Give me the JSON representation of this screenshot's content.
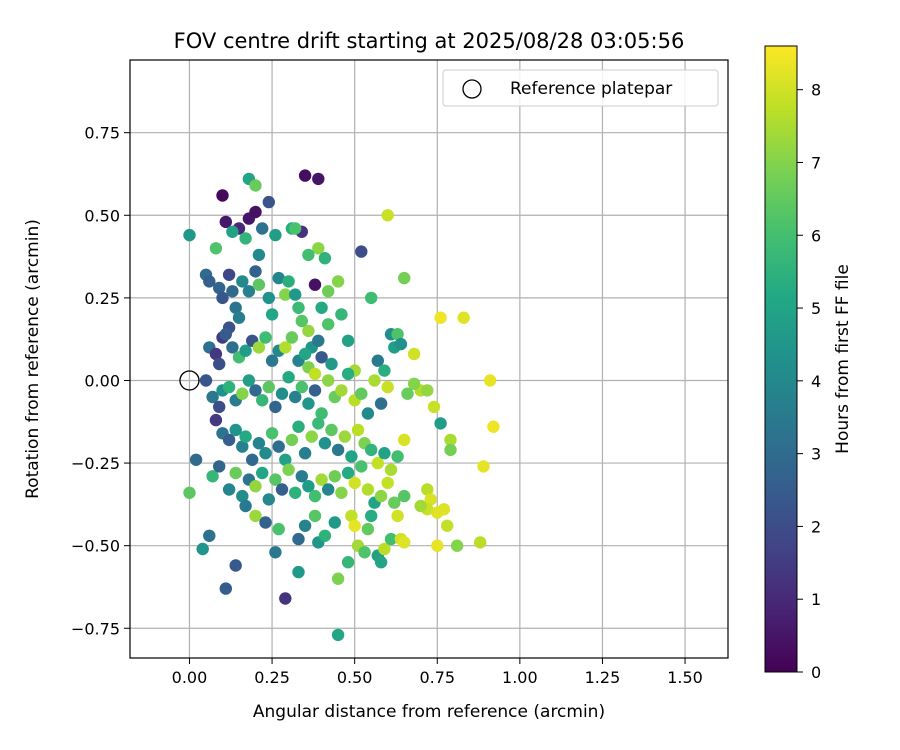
{
  "chart_data": {
    "type": "scatter",
    "title": "FOV centre drift starting at 2025/08/28 03:05:56",
    "xlabel": "Angular distance from reference (arcmin)",
    "ylabel": "Rotation from reference (arcmin)",
    "xlim": [
      -0.18,
      1.63
    ],
    "ylim": [
      -0.84,
      0.97
    ],
    "xticks": [
      0.0,
      0.25,
      0.5,
      0.75,
      1.0,
      1.25,
      1.5
    ],
    "xtick_labels": [
      "0.00",
      "0.25",
      "0.50",
      "0.75",
      "1.00",
      "1.25",
      "1.50"
    ],
    "yticks": [
      -0.75,
      -0.5,
      -0.25,
      0.0,
      0.25,
      0.5,
      0.75
    ],
    "ytick_labels": [
      "−0.75",
      "−0.50",
      "−0.25",
      "0.00",
      "0.25",
      "0.50",
      "0.75"
    ],
    "grid": true,
    "legend": {
      "placement": "top-right",
      "entries": [
        {
          "label": "Reference platepar",
          "marker": "open-circle"
        }
      ]
    },
    "reference_point": {
      "x": 0.0,
      "y": 0.0
    },
    "colorbar": {
      "label": "Hours from first FF file",
      "min": 0,
      "max": 8.6,
      "ticks": [
        0,
        1,
        2,
        3,
        4,
        5,
        6,
        7,
        8
      ],
      "tick_labels": [
        "0",
        "1",
        "2",
        "3",
        "4",
        "5",
        "6",
        "7",
        "8"
      ],
      "colormap": "viridis"
    },
    "points": [
      [
        0.1,
        0.56,
        0.2
      ],
      [
        0.11,
        0.48,
        0.6
      ],
      [
        0.15,
        0.46,
        1.0
      ],
      [
        0.18,
        0.49,
        0.5
      ],
      [
        0.2,
        0.51,
        0.4
      ],
      [
        0.24,
        0.54,
        2.2
      ],
      [
        0.35,
        0.62,
        0.3
      ],
      [
        0.39,
        0.61,
        0.5
      ],
      [
        0.34,
        0.45,
        1.2
      ],
      [
        0.38,
        0.29,
        0.4
      ],
      [
        0.52,
        0.39,
        2.0
      ],
      [
        0.18,
        0.61,
        5.0
      ],
      [
        0.2,
        0.59,
        6.6
      ],
      [
        0.13,
        0.45,
        4.9
      ],
      [
        0.17,
        0.43,
        5.6
      ],
      [
        0.08,
        0.4,
        6.2
      ],
      [
        0.0,
        0.44,
        4.5
      ],
      [
        0.22,
        0.46,
        3.2
      ],
      [
        0.21,
        0.38,
        4.0
      ],
      [
        0.26,
        0.44,
        4.8
      ],
      [
        0.31,
        0.46,
        5.3
      ],
      [
        0.32,
        0.46,
        6.1
      ],
      [
        0.39,
        0.4,
        7.1
      ],
      [
        0.36,
        0.38,
        6.0
      ],
      [
        0.41,
        0.37,
        5.5
      ],
      [
        0.6,
        0.5,
        7.9
      ],
      [
        0.65,
        0.31,
        6.8
      ],
      [
        0.45,
        0.3,
        7.0
      ],
      [
        0.42,
        0.27,
        6.7
      ],
      [
        0.55,
        0.25,
        5.9
      ],
      [
        0.05,
        0.32,
        3.0
      ],
      [
        0.06,
        0.3,
        2.6
      ],
      [
        0.09,
        0.28,
        2.8
      ],
      [
        0.1,
        0.25,
        2.3
      ],
      [
        0.12,
        0.32,
        1.8
      ],
      [
        0.13,
        0.27,
        2.9
      ],
      [
        0.14,
        0.22,
        3.3
      ],
      [
        0.15,
        0.19,
        3.6
      ],
      [
        0.12,
        0.16,
        2.1
      ],
      [
        0.1,
        0.13,
        1.5
      ],
      [
        0.16,
        0.3,
        4.1
      ],
      [
        0.18,
        0.27,
        3.7
      ],
      [
        0.2,
        0.33,
        2.7
      ],
      [
        0.21,
        0.29,
        6.4
      ],
      [
        0.24,
        0.25,
        4.3
      ],
      [
        0.25,
        0.2,
        5.1
      ],
      [
        0.27,
        0.31,
        3.9
      ],
      [
        0.29,
        0.26,
        7.0
      ],
      [
        0.3,
        0.3,
        5.4
      ],
      [
        0.32,
        0.26,
        4.6
      ],
      [
        0.33,
        0.22,
        5.8
      ],
      [
        0.34,
        0.18,
        6.3
      ],
      [
        0.36,
        0.15,
        7.2
      ],
      [
        0.37,
        0.1,
        4.4
      ],
      [
        0.39,
        0.12,
        3.5
      ],
      [
        0.4,
        0.22,
        5.2
      ],
      [
        0.42,
        0.17,
        6.2
      ],
      [
        0.46,
        0.2,
        5.7
      ],
      [
        0.48,
        0.12,
        4.9
      ],
      [
        0.5,
        0.03,
        7.4
      ],
      [
        0.06,
        0.1,
        3.2
      ],
      [
        0.08,
        0.08,
        1.4
      ],
      [
        0.09,
        0.05,
        2.0
      ],
      [
        0.11,
        0.14,
        2.5
      ],
      [
        0.13,
        0.1,
        3.1
      ],
      [
        0.15,
        0.07,
        6.0
      ],
      [
        0.17,
        0.09,
        4.7
      ],
      [
        0.19,
        0.12,
        2.2
      ],
      [
        0.21,
        0.1,
        7.3
      ],
      [
        0.23,
        0.13,
        5.9
      ],
      [
        0.25,
        0.06,
        3.4
      ],
      [
        0.27,
        0.09,
        4.0
      ],
      [
        0.29,
        0.1,
        7.6
      ],
      [
        0.31,
        0.13,
        6.6
      ],
      [
        0.33,
        0.06,
        3.8
      ],
      [
        0.35,
        0.08,
        5.0
      ],
      [
        0.36,
        0.04,
        6.9
      ],
      [
        0.38,
        0.02,
        7.8
      ],
      [
        0.4,
        0.07,
        2.4
      ],
      [
        0.43,
        0.05,
        4.6
      ],
      [
        0.05,
        0.0,
        2.3
      ],
      [
        0.07,
        -0.05,
        3.4
      ],
      [
        0.09,
        -0.08,
        2.0
      ],
      [
        0.1,
        -0.03,
        4.3
      ],
      [
        0.12,
        -0.02,
        5.5
      ],
      [
        0.14,
        -0.06,
        3.6
      ],
      [
        0.16,
        -0.04,
        7.0
      ],
      [
        0.18,
        0.0,
        4.8
      ],
      [
        0.2,
        -0.03,
        3.0
      ],
      [
        0.22,
        -0.06,
        5.7
      ],
      [
        0.24,
        -0.02,
        6.4
      ],
      [
        0.26,
        -0.08,
        2.8
      ],
      [
        0.28,
        -0.04,
        4.2
      ],
      [
        0.3,
        0.01,
        5.2
      ],
      [
        0.32,
        -0.05,
        3.7
      ],
      [
        0.34,
        -0.02,
        6.1
      ],
      [
        0.36,
        -0.07,
        4.5
      ],
      [
        0.38,
        -0.03,
        2.6
      ],
      [
        0.4,
        -0.1,
        5.9
      ],
      [
        0.42,
        0.0,
        7.1
      ],
      [
        0.44,
        -0.05,
        6.6
      ],
      [
        0.46,
        -0.03,
        7.4
      ],
      [
        0.48,
        0.02,
        5.3
      ],
      [
        0.5,
        -0.06,
        7.7
      ],
      [
        0.52,
        -0.04,
        6.5
      ],
      [
        0.54,
        -0.1,
        4.0
      ],
      [
        0.56,
        0.0,
        7.5
      ],
      [
        0.58,
        -0.07,
        3.2
      ],
      [
        0.6,
        -0.02,
        7.9
      ],
      [
        0.62,
        0.1,
        4.8
      ],
      [
        0.57,
        0.06,
        3.5
      ],
      [
        0.59,
        0.03,
        5.4
      ],
      [
        0.61,
        0.14,
        4.2
      ],
      [
        0.63,
        0.14,
        6.2
      ],
      [
        0.64,
        0.11,
        4.3
      ],
      [
        0.68,
        0.08,
        8.0
      ],
      [
        0.7,
        -0.03,
        7.6
      ],
      [
        0.72,
        -0.03,
        7.2
      ],
      [
        0.74,
        -0.08,
        7.9
      ],
      [
        0.76,
        -0.13,
        4.7
      ],
      [
        0.08,
        -0.12,
        1.4
      ],
      [
        0.1,
        -0.16,
        3.3
      ],
      [
        0.12,
        -0.18,
        2.6
      ],
      [
        0.14,
        -0.15,
        4.4
      ],
      [
        0.16,
        -0.2,
        3.7
      ],
      [
        0.17,
        -0.17,
        5.2
      ],
      [
        0.19,
        -0.24,
        2.9
      ],
      [
        0.21,
        -0.19,
        3.8
      ],
      [
        0.23,
        -0.22,
        4.1
      ],
      [
        0.25,
        -0.16,
        6.1
      ],
      [
        0.27,
        -0.2,
        3.1
      ],
      [
        0.29,
        -0.24,
        4.9
      ],
      [
        0.31,
        -0.18,
        6.8
      ],
      [
        0.33,
        -0.14,
        5.4
      ],
      [
        0.35,
        -0.22,
        3.6
      ],
      [
        0.37,
        -0.17,
        7.1
      ],
      [
        0.39,
        -0.13,
        5.8
      ],
      [
        0.41,
        -0.19,
        4.3
      ],
      [
        0.43,
        -0.15,
        6.4
      ],
      [
        0.45,
        -0.21,
        3.4
      ],
      [
        0.47,
        -0.17,
        7.3
      ],
      [
        0.49,
        -0.23,
        5.0
      ],
      [
        0.51,
        -0.15,
        7.7
      ],
      [
        0.53,
        -0.19,
        6.9
      ],
      [
        0.55,
        -0.21,
        5.6
      ],
      [
        0.57,
        -0.25,
        7.8
      ],
      [
        0.59,
        -0.22,
        4.9
      ],
      [
        0.61,
        -0.27,
        7.5
      ],
      [
        0.63,
        -0.23,
        6.0
      ],
      [
        0.65,
        -0.18,
        8.1
      ],
      [
        0.02,
        -0.24,
        3.0
      ],
      [
        0.0,
        -0.34,
        6.4
      ],
      [
        0.07,
        -0.29,
        5.7
      ],
      [
        0.09,
        -0.26,
        2.8
      ],
      [
        0.12,
        -0.33,
        3.9
      ],
      [
        0.14,
        -0.28,
        6.6
      ],
      [
        0.16,
        -0.35,
        4.2
      ],
      [
        0.18,
        -0.3,
        3.3
      ],
      [
        0.2,
        -0.32,
        7.2
      ],
      [
        0.22,
        -0.28,
        5.1
      ],
      [
        0.24,
        -0.36,
        4.0
      ],
      [
        0.26,
        -0.3,
        6.3
      ],
      [
        0.28,
        -0.33,
        2.6
      ],
      [
        0.3,
        -0.27,
        6.9
      ],
      [
        0.32,
        -0.34,
        5.5
      ],
      [
        0.34,
        -0.29,
        3.6
      ],
      [
        0.36,
        -0.32,
        4.7
      ],
      [
        0.38,
        -0.35,
        6.0
      ],
      [
        0.4,
        -0.3,
        7.4
      ],
      [
        0.42,
        -0.33,
        3.9
      ],
      [
        0.44,
        -0.29,
        6.7
      ],
      [
        0.46,
        -0.34,
        7.0
      ],
      [
        0.48,
        -0.28,
        5.2
      ],
      [
        0.5,
        -0.31,
        8.0
      ],
      [
        0.52,
        -0.26,
        6.1
      ],
      [
        0.54,
        -0.33,
        7.6
      ],
      [
        0.56,
        -0.37,
        5.0
      ],
      [
        0.58,
        -0.35,
        7.1
      ],
      [
        0.6,
        -0.31,
        7.8
      ],
      [
        0.62,
        -0.37,
        6.6
      ],
      [
        0.65,
        -0.35,
        6.3
      ],
      [
        0.72,
        -0.33,
        7.7
      ],
      [
        0.73,
        -0.36,
        8.1
      ],
      [
        0.72,
        -0.39,
        7.9
      ],
      [
        0.77,
        -0.39,
        8.2
      ],
      [
        0.78,
        -0.44,
        7.8
      ],
      [
        0.79,
        -0.18,
        7.5
      ],
      [
        0.79,
        -0.21,
        6.8
      ],
      [
        0.89,
        -0.26,
        8.3
      ],
      [
        0.92,
        -0.14,
        8.4
      ],
      [
        0.91,
        0.0,
        8.3
      ],
      [
        0.83,
        0.19,
        8.2
      ],
      [
        0.76,
        0.19,
        8.4
      ],
      [
        0.68,
        -0.01,
        7.0
      ],
      [
        0.66,
        -0.04,
        6.6
      ],
      [
        0.04,
        -0.51,
        4.4
      ],
      [
        0.06,
        -0.47,
        3.2
      ],
      [
        0.11,
        -0.63,
        2.5
      ],
      [
        0.14,
        -0.56,
        2.4
      ],
      [
        0.17,
        -0.38,
        3.5
      ],
      [
        0.2,
        -0.41,
        7.3
      ],
      [
        0.23,
        -0.43,
        2.7
      ],
      [
        0.26,
        -0.52,
        3.4
      ],
      [
        0.27,
        -0.45,
        6.1
      ],
      [
        0.29,
        -0.66,
        1.3
      ],
      [
        0.33,
        -0.48,
        3.0
      ],
      [
        0.33,
        -0.58,
        4.6
      ],
      [
        0.35,
        -0.44,
        3.8
      ],
      [
        0.38,
        -0.41,
        6.3
      ],
      [
        0.39,
        -0.49,
        4.5
      ],
      [
        0.41,
        -0.47,
        5.5
      ],
      [
        0.44,
        -0.43,
        4.6
      ],
      [
        0.45,
        -0.6,
        6.9
      ],
      [
        0.45,
        -0.77,
        5.1
      ],
      [
        0.48,
        -0.55,
        5.7
      ],
      [
        0.49,
        -0.41,
        7.8
      ],
      [
        0.5,
        -0.44,
        8.3
      ],
      [
        0.51,
        -0.5,
        7.4
      ],
      [
        0.53,
        -0.52,
        6.2
      ],
      [
        0.54,
        -0.45,
        6.5
      ],
      [
        0.55,
        -0.41,
        5.3
      ],
      [
        0.57,
        -0.53,
        4.8
      ],
      [
        0.58,
        -0.55,
        5.0
      ],
      [
        0.59,
        -0.51,
        7.7
      ],
      [
        0.61,
        -0.48,
        6.0
      ],
      [
        0.63,
        -0.41,
        8.0
      ],
      [
        0.64,
        -0.48,
        8.0
      ],
      [
        0.65,
        -0.49,
        8.2
      ],
      [
        0.7,
        -0.38,
        7.4
      ],
      [
        0.75,
        -0.4,
        8.2
      ],
      [
        0.75,
        -0.5,
        8.3
      ],
      [
        0.81,
        -0.5,
        7.0
      ],
      [
        0.88,
        -0.49,
        7.7
      ]
    ]
  }
}
